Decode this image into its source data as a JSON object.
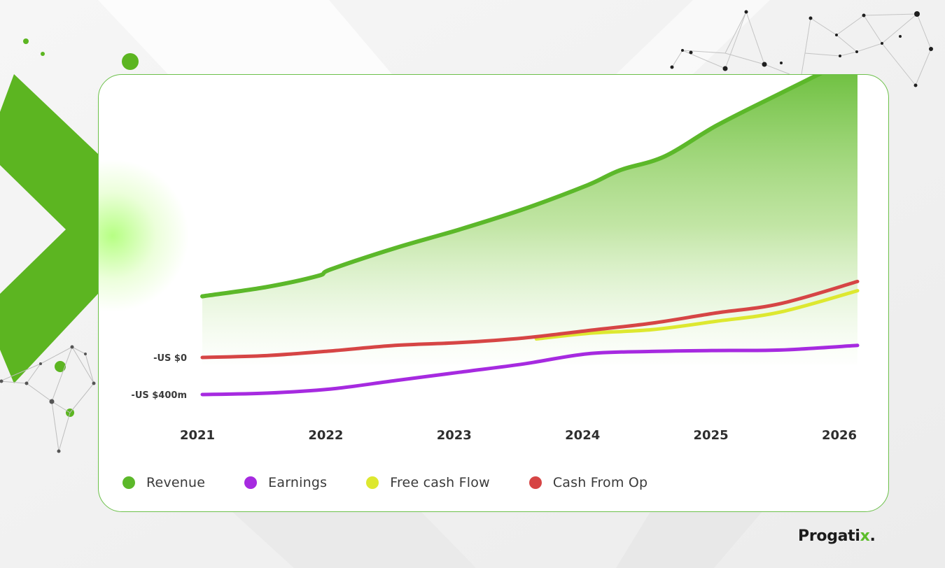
{
  "chart_data": {
    "type": "line",
    "x_ticks": [
      "2021",
      "2022",
      "2023",
      "2024",
      "2025",
      "2026"
    ],
    "y_ticks": [
      {
        "label": "-US $0",
        "value": 0
      },
      {
        "label": "-US $400m",
        "value": -400
      }
    ],
    "xlim": [
      2021.0,
      2026.1
    ],
    "ylim": [
      -700,
      4000
    ],
    "grid": false,
    "legend": "bottom-left",
    "series": [
      {
        "name": "Revenue",
        "color": "#5cb82a",
        "style": "area",
        "points": [
          [
            2021.0,
            660
          ],
          [
            2021.5,
            760
          ],
          [
            2021.9,
            880
          ],
          [
            2022.0,
            950
          ],
          [
            2022.5,
            1180
          ],
          [
            2023.0,
            1380
          ],
          [
            2023.5,
            1600
          ],
          [
            2024.0,
            1860
          ],
          [
            2024.25,
            2020
          ],
          [
            2024.6,
            2170
          ],
          [
            2025.0,
            2500
          ],
          [
            2025.5,
            2850
          ],
          [
            2026.1,
            3260
          ]
        ]
      },
      {
        "name": "Earnings",
        "color": "#a62ae0",
        "style": "line",
        "points": [
          [
            2021.0,
            -400
          ],
          [
            2021.5,
            -385
          ],
          [
            2022.0,
            -340
          ],
          [
            2022.5,
            -250
          ],
          [
            2023.0,
            -160
          ],
          [
            2023.5,
            -70
          ],
          [
            2024.0,
            40
          ],
          [
            2024.5,
            65
          ],
          [
            2025.0,
            75
          ],
          [
            2025.5,
            80
          ],
          [
            2026.1,
            130
          ]
        ]
      },
      {
        "name": "Free cash Flow",
        "color": "#dde82f",
        "style": "line",
        "points": [
          [
            2023.6,
            200
          ],
          [
            2024.0,
            260
          ],
          [
            2024.5,
            300
          ],
          [
            2025.0,
            390
          ],
          [
            2025.5,
            490
          ],
          [
            2026.1,
            720
          ]
        ]
      },
      {
        "name": "Cash From Op",
        "color": "#d64545",
        "style": "line",
        "points": [
          [
            2021.0,
            0
          ],
          [
            2021.5,
            20
          ],
          [
            2022.0,
            70
          ],
          [
            2022.5,
            130
          ],
          [
            2023.0,
            160
          ],
          [
            2023.5,
            210
          ],
          [
            2024.0,
            290
          ],
          [
            2024.5,
            370
          ],
          [
            2025.0,
            480
          ],
          [
            2025.5,
            580
          ],
          [
            2026.1,
            820
          ]
        ]
      }
    ]
  },
  "brand": {
    "name_a": "Progati",
    "name_x": "x",
    "name_b": "."
  }
}
